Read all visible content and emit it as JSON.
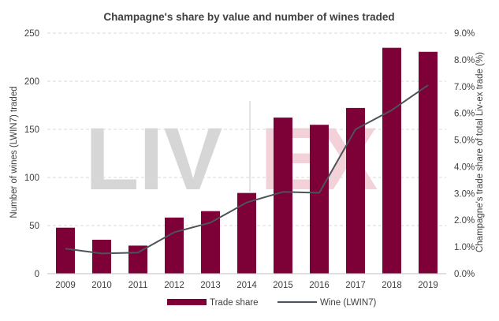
{
  "colors": {
    "bar": "#7d0036",
    "line": "#4d535a",
    "grid": "#d9d9d9",
    "text": "#404040",
    "watermark_gray": "#d0d0d0",
    "watermark_red": "#f2c9d2"
  },
  "watermark": {
    "left": "LIV",
    "right": "EX"
  },
  "chart_data": {
    "type": "bar",
    "title": "Champagne's share by value and number of wines traded",
    "categories": [
      "2009",
      "2010",
      "2011",
      "2012",
      "2013",
      "2014",
      "2015",
      "2016",
      "2017",
      "2018",
      "2019"
    ],
    "y_left": {
      "label": "Number of wines (LWIN7) traded",
      "range": [
        0,
        250
      ],
      "ticks": [
        "0",
        "50",
        "100",
        "150",
        "200",
        "250"
      ]
    },
    "y_right": {
      "label": "Champagne's trade share of total Liv-ex trade (%)",
      "range": [
        0,
        9
      ],
      "ticks": [
        "0.0%",
        "1.0%",
        "2.0%",
        "3.0%",
        "4.0%",
        "5.0%",
        "6.0%",
        "7.0%",
        "8.0%",
        "9.0%"
      ]
    },
    "grid": true,
    "legend_position": "bottom",
    "series": [
      {
        "name": "Trade share",
        "type": "bar",
        "axis": "right",
        "values": [
          1.72,
          1.27,
          1.05,
          2.1,
          2.34,
          3.02,
          5.84,
          5.57,
          6.2,
          8.45,
          8.3
        ]
      },
      {
        "name": "Wine (LWIN7)",
        "type": "line",
        "axis": "left",
        "values": [
          26,
          21,
          22,
          43,
          53,
          74,
          85,
          84,
          150,
          170,
          196
        ]
      }
    ]
  }
}
